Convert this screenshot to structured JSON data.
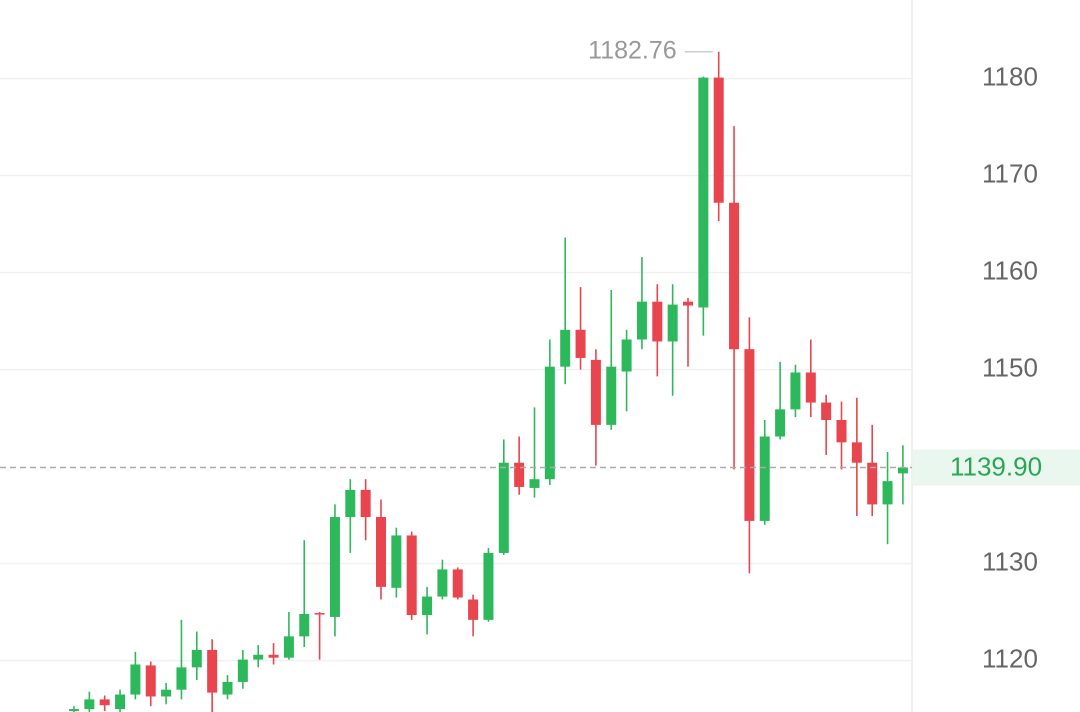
{
  "chart_data": {
    "type": "candlestick",
    "open": [
      1114.8,
      1115.0,
      1116.0,
      1115.0,
      1116.5,
      1119.5,
      1116.3,
      1117.0,
      1119.3,
      1121.1,
      1116.5,
      1117.8,
      1120.1,
      1120.6,
      1120.3,
      1122.5,
      1124.9,
      1124.5,
      1134.8,
      1137.6,
      1134.8,
      1127.5,
      1132.9,
      1124.7,
      1126.6,
      1129.4,
      1126.3,
      1124.2,
      1131.1,
      1140.4,
      1137.8,
      1138.7,
      1150.3,
      1154.1,
      1151.0,
      1144.3,
      1149.8,
      1153.1,
      1157.0,
      1152.9,
      1157.0,
      1156.4,
      1180.1,
      1167.2,
      1152.1,
      1134.4,
      1143.1,
      1145.9,
      1149.7,
      1146.6,
      1144.8,
      1142.5,
      1140.4,
      1136.1,
      1139.3
    ],
    "high": [
      1115.3,
      1116.8,
      1116.4,
      1117.0,
      1120.9,
      1119.9,
      1117.7,
      1124.2,
      1123.0,
      1122.2,
      1118.5,
      1121.1,
      1121.6,
      1121.8,
      1125.0,
      1132.4,
      1125.0,
      1136.1,
      1138.7,
      1138.7,
      1136.6,
      1133.7,
      1133.3,
      1127.6,
      1130.4,
      1129.6,
      1126.8,
      1131.6,
      1142.8,
      1143.1,
      1146.1,
      1153.1,
      1163.6,
      1158.5,
      1152.1,
      1158.2,
      1154.1,
      1161.6,
      1158.8,
      1158.8,
      1157.4,
      1180.2,
      1182.76,
      1175.1,
      1155.4,
      1144.8,
      1150.8,
      1150.5,
      1153.1,
      1147.4,
      1146.7,
      1147.1,
      1144.3,
      1141.5,
      1142.2
    ],
    "low": [
      1114.5,
      1114.7,
      1114.8,
      1114.7,
      1116.0,
      1115.3,
      1115.5,
      1116.0,
      1118.0,
      1114.7,
      1116.0,
      1117.1,
      1119.3,
      1119.6,
      1120.1,
      1121.4,
      1120.1,
      1122.5,
      1131.1,
      1132.4,
      1126.3,
      1126.5,
      1124.2,
      1122.7,
      1126.3,
      1126.3,
      1122.5,
      1124.0,
      1130.9,
      1137.1,
      1136.8,
      1138.1,
      1148.5,
      1150.0,
      1140.1,
      1143.8,
      1145.7,
      1152.1,
      1149.3,
      1147.3,
      1150.3,
      1153.5,
      1165.3,
      1139.7,
      1129.0,
      1134.0,
      1142.8,
      1145.1,
      1145.1,
      1141.2,
      1139.7,
      1134.9,
      1134.9,
      1132.0,
      1136.1
    ],
    "close": [
      1115.0,
      1116.0,
      1115.4,
      1116.5,
      1119.6,
      1116.3,
      1117.0,
      1119.3,
      1121.1,
      1116.7,
      1117.8,
      1120.1,
      1120.6,
      1120.3,
      1122.5,
      1124.8,
      1124.8,
      1134.8,
      1137.6,
      1134.8,
      1127.6,
      1132.9,
      1124.7,
      1126.6,
      1129.4,
      1126.5,
      1124.2,
      1131.1,
      1140.4,
      1137.9,
      1138.7,
      1150.3,
      1154.1,
      1151.2,
      1144.3,
      1150.3,
      1153.1,
      1157.0,
      1152.9,
      1156.7,
      1156.6,
      1180.1,
      1167.2,
      1152.1,
      1134.4,
      1143.1,
      1145.9,
      1149.7,
      1146.6,
      1144.8,
      1142.5,
      1140.4,
      1136.1,
      1138.5,
      1139.9
    ],
    "up_color": "#2eb85c",
    "down_color": "#e8454f",
    "ylim": [
      1114.7,
      1188.1
    ],
    "yticks": [
      1120,
      1130,
      1150,
      1160,
      1170,
      1180
    ],
    "grid": true,
    "last_price": {
      "value": 1139.9,
      "label": "1139.90"
    }
  }
}
